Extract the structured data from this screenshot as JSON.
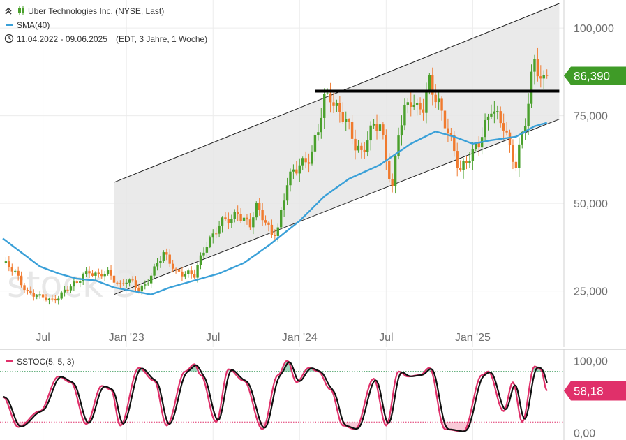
{
  "legend": {
    "instrument": "Uber Technologies Inc. (NYSE, Last)",
    "sma": "SMA(40)",
    "range": "11.04.2022 - 09.06.2025",
    "meta": "(EDT, 3 Jahre, 1 Woche)",
    "stoch": "SSTOC(5, 5, 3)"
  },
  "watermark": "stock 3",
  "colors": {
    "up": "#4aa02c",
    "down": "#f07a2e",
    "sma": "#3aa0d8",
    "stoch_k": "#e0306a",
    "stoch_d": "#111111",
    "price_badge": "#3f9b27",
    "stoch_badge": "#e0306a",
    "channel_fill": "#e6e6e6"
  },
  "price_badge": "86,390",
  "stoch_badge": "58,18",
  "chart_data": [
    {
      "type": "candlestick",
      "title": "Uber Technologies Inc. (NYSE, Last)",
      "x_ticks": [
        "Jul",
        "Jan '23",
        "Jul",
        "Jan '24",
        "Jul",
        "Jan '25"
      ],
      "y_ticks": [
        "25,000",
        "50,000",
        "75,000",
        "100,000"
      ],
      "y_tick_values": [
        25,
        50,
        75,
        100
      ],
      "ylim": [
        9,
        108
      ],
      "last_value": 86.39,
      "grid": true,
      "weekly_close_anchors": [
        [
          0,
          33
        ],
        [
          4,
          30
        ],
        [
          8,
          25
        ],
        [
          12,
          23
        ],
        [
          16,
          22.5
        ],
        [
          20,
          25
        ],
        [
          24,
          27
        ],
        [
          26,
          30
        ],
        [
          28,
          31
        ],
        [
          31,
          29
        ],
        [
          34,
          30
        ],
        [
          38,
          27
        ],
        [
          40,
          28
        ],
        [
          42,
          27
        ],
        [
          44,
          25
        ],
        [
          46,
          27
        ],
        [
          50,
          33
        ],
        [
          52,
          35
        ],
        [
          56,
          31
        ],
        [
          60,
          30
        ],
        [
          62,
          29
        ],
        [
          66,
          39
        ],
        [
          70,
          44
        ],
        [
          74,
          45
        ],
        [
          76,
          48
        ],
        [
          78,
          46
        ],
        [
          80,
          44
        ],
        [
          82,
          48
        ],
        [
          84,
          46
        ],
        [
          87,
          42
        ],
        [
          89,
          43
        ],
        [
          92,
          55
        ],
        [
          96,
          62
        ],
        [
          100,
          64
        ],
        [
          102,
          70
        ],
        [
          104,
          79
        ],
        [
          106,
          82
        ],
        [
          108,
          78
        ],
        [
          110,
          75
        ],
        [
          112,
          70
        ],
        [
          114,
          66
        ],
        [
          116,
          65
        ],
        [
          118,
          70
        ],
        [
          120,
          72
        ],
        [
          122,
          71
        ],
        [
          124,
          62
        ],
        [
          126,
          55
        ],
        [
          128,
          72
        ],
        [
          130,
          76
        ],
        [
          132,
          78
        ],
        [
          134,
          76
        ],
        [
          136,
          79
        ],
        [
          138,
          86
        ],
        [
          140,
          80
        ],
        [
          142,
          74
        ],
        [
          144,
          70
        ],
        [
          146,
          66
        ],
        [
          148,
          60
        ],
        [
          150,
          62
        ],
        [
          152,
          63
        ],
        [
          154,
          67
        ],
        [
          156,
          73
        ],
        [
          158,
          79
        ],
        [
          160,
          74
        ],
        [
          162,
          71
        ],
        [
          164,
          65
        ],
        [
          166,
          62
        ],
        [
          168,
          71
        ],
        [
          170,
          78
        ],
        [
          172,
          90
        ],
        [
          174,
          84
        ],
        [
          176,
          86.39
        ]
      ],
      "sma_series": {
        "name": "SMA(40)",
        "points": [
          [
            0,
            40
          ],
          [
            6,
            36
          ],
          [
            12,
            32
          ],
          [
            18,
            30
          ],
          [
            24,
            28.5
          ],
          [
            30,
            28
          ],
          [
            36,
            26
          ],
          [
            42,
            25
          ],
          [
            48,
            24
          ],
          [
            54,
            26
          ],
          [
            62,
            28
          ],
          [
            70,
            30
          ],
          [
            78,
            33
          ],
          [
            86,
            38
          ],
          [
            96,
            45
          ],
          [
            104,
            52
          ],
          [
            112,
            57
          ],
          [
            122,
            61
          ],
          [
            132,
            67
          ],
          [
            140,
            70.5
          ],
          [
            146,
            69
          ],
          [
            152,
            67
          ],
          [
            158,
            68
          ],
          [
            166,
            69
          ],
          [
            172,
            72
          ],
          [
            176,
            73
          ]
        ]
      },
      "channel": {
        "upper": [
          [
            36,
            56
          ],
          [
            180,
            107
          ]
        ],
        "lower": [
          [
            36,
            24
          ],
          [
            180,
            74
          ]
        ]
      },
      "resistance": {
        "level": 82,
        "from": 101,
        "to": 180
      }
    },
    {
      "type": "line",
      "title": "SSTOC(5, 5, 3)",
      "y_ticks": [
        "0,00",
        "100,00"
      ],
      "y_tick_values": [
        0,
        100
      ],
      "ylim": [
        -8,
        108
      ],
      "overbought": 85,
      "oversold": 15,
      "last_value": 58.18,
      "stoch_peaks": [
        [
          0,
          50
        ],
        [
          5,
          8
        ],
        [
          12,
          30
        ],
        [
          18,
          78
        ],
        [
          22,
          70
        ],
        [
          27,
          12
        ],
        [
          32,
          65
        ],
        [
          35,
          60
        ],
        [
          38,
          10
        ],
        [
          44,
          90
        ],
        [
          49,
          72
        ],
        [
          53,
          10
        ],
        [
          59,
          85
        ],
        [
          62,
          95
        ],
        [
          64,
          80
        ],
        [
          69,
          15
        ],
        [
          73,
          88
        ],
        [
          78,
          72
        ],
        [
          84,
          5
        ],
        [
          89,
          80
        ],
        [
          92,
          100
        ],
        [
          95,
          70
        ],
        [
          99,
          90
        ],
        [
          102,
          85
        ],
        [
          106,
          60
        ],
        [
          110,
          10
        ],
        [
          114,
          5
        ],
        [
          120,
          75
        ],
        [
          124,
          10
        ],
        [
          128,
          85
        ],
        [
          131,
          78
        ],
        [
          135,
          80
        ],
        [
          138,
          90
        ],
        [
          143,
          5
        ],
        [
          149,
          2
        ],
        [
          155,
          80
        ],
        [
          157,
          85
        ],
        [
          162,
          30
        ],
        [
          165,
          70
        ],
        [
          168,
          15
        ],
        [
          172,
          92
        ],
        [
          174,
          88
        ],
        [
          176,
          58.18
        ]
      ]
    }
  ]
}
